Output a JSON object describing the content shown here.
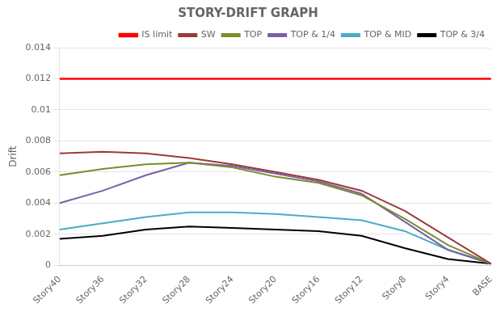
{
  "chart_data": {
    "type": "line",
    "title": "STORY-DRIFT GRAPH",
    "ylabel": "Drift",
    "categories": [
      "Story40",
      "Story36",
      "Story32",
      "Story28",
      "Story24",
      "Story20",
      "Story16",
      "Story12",
      "Story8",
      "Story4",
      "BASE"
    ],
    "series": [
      {
        "name": "IS limit",
        "color": "#ff0000",
        "values": [
          0.012,
          0.012,
          0.012,
          0.012,
          0.012,
          0.012,
          0.012,
          0.012,
          0.012,
          0.012,
          0.012
        ]
      },
      {
        "name": "SW",
        "color": "#9b3a3a",
        "values": [
          0.0072,
          0.0073,
          0.0072,
          0.0069,
          0.0065,
          0.006,
          0.0055,
          0.0048,
          0.0035,
          0.0018,
          0.0001
        ]
      },
      {
        "name": "TOP",
        "color": "#7a8c2e",
        "values": [
          0.0058,
          0.0062,
          0.0065,
          0.0066,
          0.0063,
          0.0057,
          0.0053,
          0.0045,
          0.003,
          0.0013,
          0.0001
        ]
      },
      {
        "name": "TOP & 1/4",
        "color": "#7b5ea7",
        "values": [
          0.004,
          0.0048,
          0.0058,
          0.0066,
          0.0064,
          0.0059,
          0.0054,
          0.0046,
          0.0028,
          0.001,
          0.0001
        ]
      },
      {
        "name": "TOP & MID",
        "color": "#4bacc6",
        "values": [
          0.0023,
          0.0027,
          0.0031,
          0.0034,
          0.0034,
          0.0033,
          0.0031,
          0.0029,
          0.0022,
          0.001,
          0.0001
        ]
      },
      {
        "name": "TOP & 3/4",
        "color": "#000000",
        "values": [
          0.0017,
          0.0019,
          0.0023,
          0.0025,
          0.0024,
          0.0023,
          0.0022,
          0.0019,
          0.0011,
          0.0004,
          0.0001
        ]
      }
    ],
    "ylim": [
      0,
      0.014
    ],
    "yticks": [
      0,
      0.002,
      0.004,
      0.006,
      0.008,
      0.01,
      0.012,
      0.014
    ],
    "grid": "y",
    "legend": "upper right"
  }
}
